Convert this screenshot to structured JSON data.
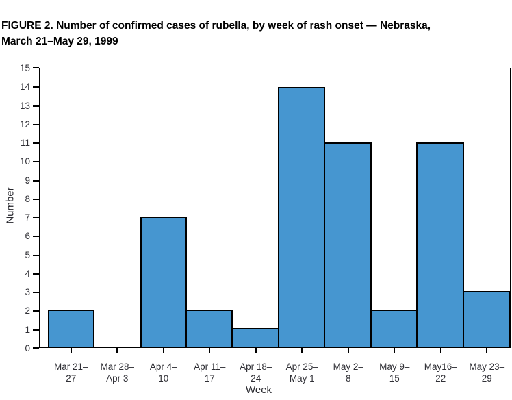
{
  "header": {
    "title_line1": "FIGURE 2. Number of confirmed cases of rubella, by week of rash onset — Nebraska,",
    "title_line2": "March 21–May 29, 1999"
  },
  "chart_data": {
    "type": "bar",
    "title": "FIGURE 2. Number of confirmed cases of rubella, by week of rash onset — Nebraska, March 21–May 29, 1999",
    "categories": [
      [
        "Mar 21–",
        "27"
      ],
      [
        "Mar 28–",
        "Apr 3"
      ],
      [
        "Apr 4–",
        "10"
      ],
      [
        "Apr 11–",
        "17"
      ],
      [
        "Apr 18–",
        "24"
      ],
      [
        "Apr 25–",
        "May 1"
      ],
      [
        "May 2–",
        "8"
      ],
      [
        "May 9–",
        "15"
      ],
      [
        "May16–",
        "22"
      ],
      [
        "May 23–",
        "29"
      ]
    ],
    "values": [
      2,
      0,
      7,
      2,
      1,
      14,
      11,
      2,
      11,
      3
    ],
    "xlabel": "Week",
    "ylabel": "Number",
    "ylim": [
      0,
      15
    ],
    "yticks": [
      0,
      1,
      2,
      3,
      4,
      5,
      6,
      7,
      8,
      9,
      10,
      11,
      12,
      13,
      14,
      15
    ],
    "grid": false,
    "legend": "none",
    "bar_color": "#4696D0",
    "bar_border_color": "#000000"
  }
}
